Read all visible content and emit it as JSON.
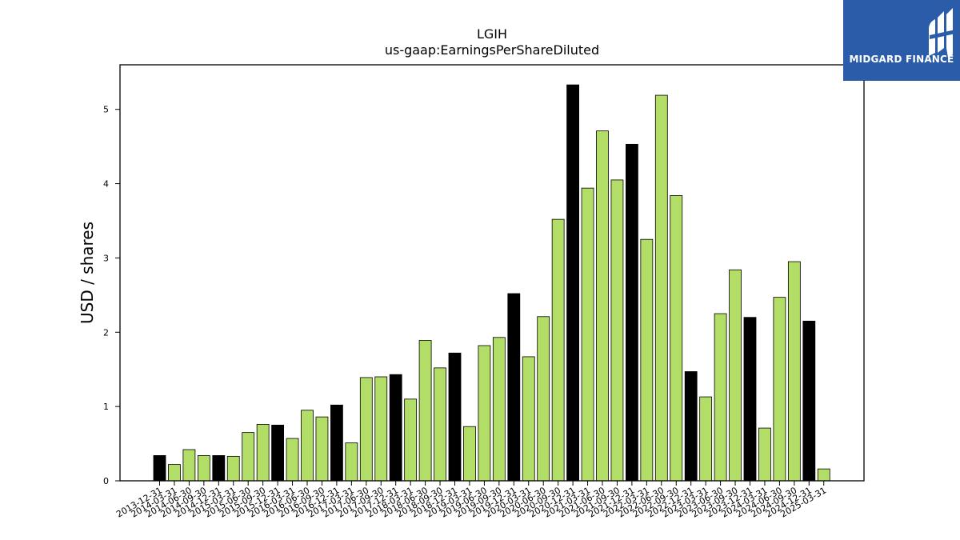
{
  "chart_data": {
    "type": "bar",
    "title": "LGIH",
    "subtitle": "us-gaap:EarningsPerShareDiluted",
    "xlabel": "",
    "ylabel": "USD / shares",
    "ylim": [
      0,
      5.6
    ],
    "yticks": [
      0,
      1,
      2,
      3,
      4,
      5
    ],
    "grid": false,
    "legend": "none",
    "colors": {
      "quarter": "#b2dd66",
      "annual": "#000000",
      "edge": "#000000"
    },
    "categories": [
      "2013-12-31",
      "2014-03-31",
      "2014-06-30",
      "2014-09-30",
      "2014-12-31",
      "2015-03-31",
      "2015-06-30",
      "2015-09-30",
      "2015-12-31",
      "2016-03-31",
      "2016-06-30",
      "2016-09-30",
      "2016-12-31",
      "2017-03-31",
      "2017-06-30",
      "2017-09-30",
      "2017-12-31",
      "2018-03-31",
      "2018-06-30",
      "2018-09-30",
      "2018-12-31",
      "2019-03-31",
      "2019-06-30",
      "2019-09-30",
      "2019-12-31",
      "2020-03-31",
      "2020-06-30",
      "2020-09-30",
      "2020-12-31",
      "2021-03-31",
      "2021-06-30",
      "2021-09-30",
      "2021-12-31",
      "2022-03-31",
      "2022-06-30",
      "2022-09-30",
      "2022-12-31",
      "2023-03-31",
      "2023-06-30",
      "2023-09-30",
      "2023-12-31",
      "2024-03-31",
      "2024-06-30",
      "2024-09-30",
      "2024-12-31",
      "2025-03-31"
    ],
    "values": [
      0.34,
      0.22,
      0.42,
      0.34,
      0.34,
      0.33,
      0.65,
      0.76,
      0.75,
      0.57,
      0.95,
      0.86,
      1.02,
      0.51,
      1.39,
      1.4,
      1.43,
      1.1,
      1.89,
      1.52,
      1.72,
      0.73,
      1.82,
      1.93,
      2.52,
      1.67,
      2.21,
      3.52,
      5.33,
      3.94,
      4.71,
      4.05,
      4.53,
      3.25,
      5.19,
      3.84,
      1.47,
      1.13,
      2.25,
      2.84,
      2.2,
      0.71,
      2.47,
      2.95,
      2.15,
      0.16
    ],
    "annual": [
      true,
      false,
      false,
      false,
      true,
      false,
      false,
      false,
      true,
      false,
      false,
      false,
      true,
      false,
      false,
      false,
      true,
      false,
      false,
      false,
      true,
      false,
      false,
      false,
      true,
      false,
      false,
      false,
      true,
      false,
      false,
      false,
      true,
      false,
      false,
      false,
      true,
      false,
      false,
      false,
      true,
      false,
      false,
      false,
      true,
      false
    ]
  },
  "logo": {
    "text": "MIDGARD FINANCE",
    "icon": "midgard-logo-icon"
  }
}
